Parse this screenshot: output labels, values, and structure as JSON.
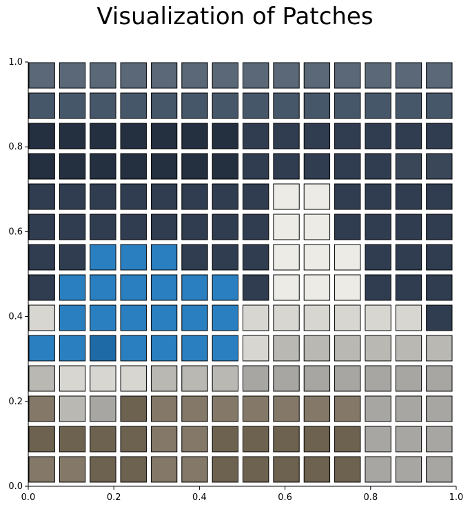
{
  "chart_data": {
    "type": "image-patch-grid",
    "title": "Visualization of Patches",
    "xlabel": "",
    "ylabel": "",
    "xlim": [
      0.0,
      1.0
    ],
    "ylim": [
      0.0,
      1.0
    ],
    "x_ticks": [
      "0.0",
      "0.2",
      "0.4",
      "0.6",
      "0.8",
      "1.0"
    ],
    "y_ticks": [
      "0.0",
      "0.2",
      "0.4",
      "0.6",
      "0.8",
      "1.0"
    ],
    "grid": false,
    "grid_rows": 14,
    "grid_cols": 14,
    "patch_edge_color": "#000000",
    "palette": {
      "sky": "#5a6878",
      "hill_top": "#47576a",
      "sea_dark": "#242f40",
      "sea_mid": "#303d50",
      "sea_light": "#3a4758",
      "dome_blue": "#2a7fc0",
      "dome_shade": "#1e6aa6",
      "bell_white": "#ecebe6",
      "wall_light": "#d7d6d1",
      "wall_gray": "#b9b8b3",
      "terrace_gray": "#a7a6a3",
      "brown_tan": "#847968",
      "brown_dark": "#6d624f"
    },
    "patch_rows": [
      [
        "sky",
        "sky",
        "sky",
        "sky",
        "sky",
        "sky",
        "sky",
        "sky",
        "sky",
        "sky",
        "sky",
        "sky",
        "sky",
        "sky"
      ],
      [
        "hill_top",
        "hill_top",
        "hill_top",
        "hill_top",
        "hill_top",
        "hill_top",
        "hill_top",
        "hill_top",
        "hill_top",
        "hill_top",
        "hill_top",
        "hill_top",
        "hill_top",
        "hill_top"
      ],
      [
        "sea_dark",
        "sea_dark",
        "sea_dark",
        "sea_dark",
        "sea_dark",
        "sea_dark",
        "sea_dark",
        "sea_mid",
        "sea_mid",
        "sea_mid",
        "sea_mid",
        "sea_mid",
        "sea_mid",
        "sea_mid"
      ],
      [
        "sea_dark",
        "sea_dark",
        "sea_dark",
        "sea_dark",
        "sea_dark",
        "sea_dark",
        "sea_dark",
        "sea_mid",
        "sea_mid",
        "sea_mid",
        "sea_mid",
        "sea_mid",
        "sea_light",
        "sea_light"
      ],
      [
        "sea_mid",
        "sea_mid",
        "sea_mid",
        "sea_mid",
        "sea_mid",
        "sea_mid",
        "sea_mid",
        "sea_mid",
        "bell_white",
        "bell_white",
        "sea_mid",
        "sea_mid",
        "sea_mid",
        "sea_mid"
      ],
      [
        "sea_mid",
        "sea_mid",
        "sea_mid",
        "sea_mid",
        "sea_mid",
        "sea_mid",
        "sea_mid",
        "sea_mid",
        "bell_white",
        "bell_white",
        "sea_mid",
        "sea_mid",
        "sea_mid",
        "sea_mid"
      ],
      [
        "sea_mid",
        "sea_mid",
        "dome_blue",
        "dome_blue",
        "dome_blue",
        "sea_mid",
        "sea_mid",
        "sea_mid",
        "bell_white",
        "bell_white",
        "bell_white",
        "sea_mid",
        "sea_mid",
        "sea_mid"
      ],
      [
        "sea_mid",
        "dome_blue",
        "dome_blue",
        "dome_blue",
        "dome_blue",
        "dome_blue",
        "dome_blue",
        "sea_mid",
        "bell_white",
        "bell_white",
        "bell_white",
        "sea_mid",
        "sea_mid",
        "sea_mid"
      ],
      [
        "wall_light",
        "dome_blue",
        "dome_blue",
        "dome_blue",
        "dome_blue",
        "dome_blue",
        "dome_blue",
        "wall_light",
        "wall_light",
        "wall_light",
        "wall_light",
        "wall_light",
        "wall_light",
        "sea_mid"
      ],
      [
        "dome_blue",
        "dome_blue",
        "dome_shade",
        "dome_blue",
        "dome_blue",
        "dome_blue",
        "dome_blue",
        "wall_light",
        "wall_gray",
        "wall_gray",
        "wall_gray",
        "wall_gray",
        "wall_gray",
        "wall_gray"
      ],
      [
        "wall_gray",
        "wall_light",
        "wall_light",
        "wall_light",
        "wall_gray",
        "wall_gray",
        "wall_gray",
        "terrace_gray",
        "terrace_gray",
        "terrace_gray",
        "terrace_gray",
        "terrace_gray",
        "terrace_gray",
        "terrace_gray"
      ],
      [
        "brown_tan",
        "wall_gray",
        "terrace_gray",
        "brown_dark",
        "brown_tan",
        "brown_tan",
        "brown_tan",
        "brown_tan",
        "brown_tan",
        "brown_tan",
        "brown_tan",
        "terrace_gray",
        "terrace_gray",
        "terrace_gray"
      ],
      [
        "brown_dark",
        "brown_dark",
        "brown_dark",
        "brown_dark",
        "brown_tan",
        "brown_tan",
        "brown_dark",
        "brown_dark",
        "brown_dark",
        "brown_dark",
        "brown_dark",
        "terrace_gray",
        "terrace_gray",
        "terrace_gray"
      ],
      [
        "brown_tan",
        "brown_tan",
        "brown_dark",
        "brown_dark",
        "brown_tan",
        "brown_tan",
        "brown_dark",
        "brown_dark",
        "brown_dark",
        "brown_dark",
        "brown_dark",
        "terrace_gray",
        "terrace_gray",
        "terrace_gray"
      ]
    ]
  }
}
